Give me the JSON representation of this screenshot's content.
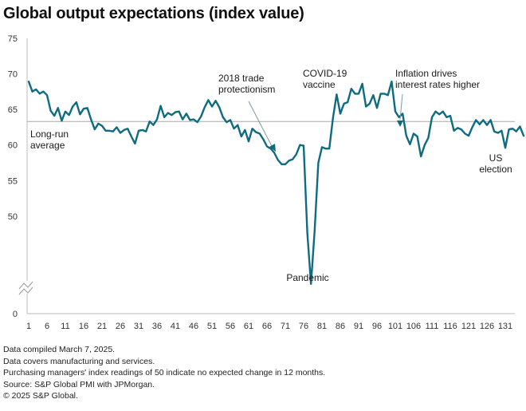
{
  "chart_data": {
    "type": "line",
    "title": "Global output expectations (index value)",
    "xlabel": "",
    "ylabel": "",
    "x_ticks": [
      "1",
      "6",
      "11",
      "16",
      "21",
      "26",
      "31",
      "36",
      "41",
      "46",
      "51",
      "56",
      "61",
      "66",
      "71",
      "76",
      "81",
      "86",
      "91",
      "96",
      "101",
      "106",
      "111",
      "116",
      "121",
      "126",
      "131"
    ],
    "y_ticks": [
      "0",
      "50",
      "55",
      "60",
      "65",
      "70",
      "75"
    ],
    "ylim": [
      0,
      75
    ],
    "axis_break": "between 0 and 50",
    "grid": false,
    "reference_line": {
      "label": "Long-run average",
      "value": 63.3
    },
    "series": [
      {
        "name": "Global output expectations",
        "color": "#0f6b80",
        "x_start": 1,
        "values": [
          68.9,
          67.5,
          67.8,
          67.2,
          67.5,
          67.0,
          64.8,
          64.1,
          65.2,
          63.4,
          64.7,
          64.2,
          65.4,
          66.0,
          64.3,
          65.1,
          65.2,
          63.6,
          62.2,
          63.0,
          62.7,
          62.0,
          62.0,
          61.9,
          62.5,
          61.7,
          62.1,
          62.3,
          61.2,
          60.2,
          62.0,
          62.1,
          61.9,
          63.3,
          62.8,
          63.6,
          65.5,
          63.9,
          64.5,
          64.2,
          64.6,
          64.7,
          63.6,
          64.4,
          63.5,
          63.6,
          63.2,
          64.0,
          65.3,
          66.3,
          65.4,
          66.2,
          65.3,
          63.9,
          63.2,
          63.5,
          62.3,
          62.8,
          61.2,
          62.1,
          60.5,
          62.3,
          61.8,
          61.6,
          60.8,
          59.8,
          59.5,
          58.9,
          57.9,
          57.3,
          57.3,
          57.8,
          58.0,
          58.7,
          60.0,
          59.9,
          47.7,
          40.5,
          48.0,
          57.5,
          59.7,
          59.5,
          59.5,
          63.8,
          67.1,
          64.4,
          65.8,
          66.0,
          67.9,
          67.2,
          67.2,
          68.6,
          65.4,
          65.8,
          67.0,
          65.2,
          67.2,
          67.2,
          67.0,
          68.9,
          64.7,
          63.9,
          64.4,
          61.3,
          60.1,
          61.6,
          61.2,
          58.4,
          60.0,
          61.0,
          63.9,
          64.7,
          64.3,
          64.7,
          63.9,
          64.1,
          62.0,
          62.4,
          62.2,
          61.6,
          61.3,
          62.5,
          63.5,
          62.9,
          63.5,
          62.8,
          63.5,
          61.9,
          61.7,
          62.0,
          59.6,
          62.2,
          62.3,
          61.9,
          62.6,
          61.3
        ]
      }
    ],
    "annotations": [
      {
        "text": [
          "Long-run",
          "average"
        ],
        "target_x": null
      },
      {
        "text": [
          "2018 trade",
          "protectionism"
        ],
        "target_x": 68,
        "arrow": true
      },
      {
        "text": [
          "COVID-19",
          "vaccine"
        ],
        "target_x": 86,
        "arrow": false
      },
      {
        "text": [
          "Pandemic"
        ],
        "target_x": 78,
        "arrow": false
      },
      {
        "text": [
          "Inflation drives",
          "interest rates higher"
        ],
        "target_x": 104,
        "arrow": true
      },
      {
        "text": [
          "US",
          "election"
        ],
        "target_x": 130,
        "arrow": false
      }
    ]
  },
  "footnotes": [
    "Data compiled March 7, 2025.",
    "Data covers manufacturing and services.",
    "Purchasing managers' index readings of 50 indicate no expected change in 12 months.",
    "Source: S&P Global PMI with JPMorgan.",
    "© 2025 S&P Global."
  ],
  "colors": {
    "line": "#0f6b80",
    "axis": "#c8c8c8",
    "avg_line": "#a8a8a8",
    "arrow": "#7a9aa6",
    "text": "#1a1a1a"
  }
}
